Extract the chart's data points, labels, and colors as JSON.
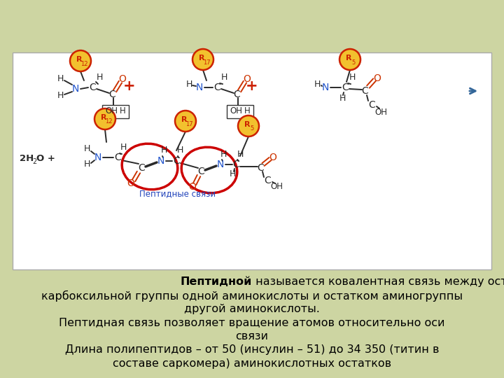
{
  "bg_color": "#cdd5a2",
  "diagram_bg": "#ffffff",
  "font_size_text": 11.5,
  "line1_bold": "Пептидной",
  "line1_rest": " называется ковалентная связь между остатком",
  "line2": "карбоксильной группы одной аминокислоты и остатком аминогруппы",
  "line3": "другой аминокислоты.",
  "line4": "Пептидная связь позволяет вращение атомов относительно оси",
  "line5": "связи",
  "line6": "Длина полипептидов – от 50 (инсулин – 51) до 34 350 (титин в",
  "line7": "составе саркомера) аминокислотных остатков"
}
